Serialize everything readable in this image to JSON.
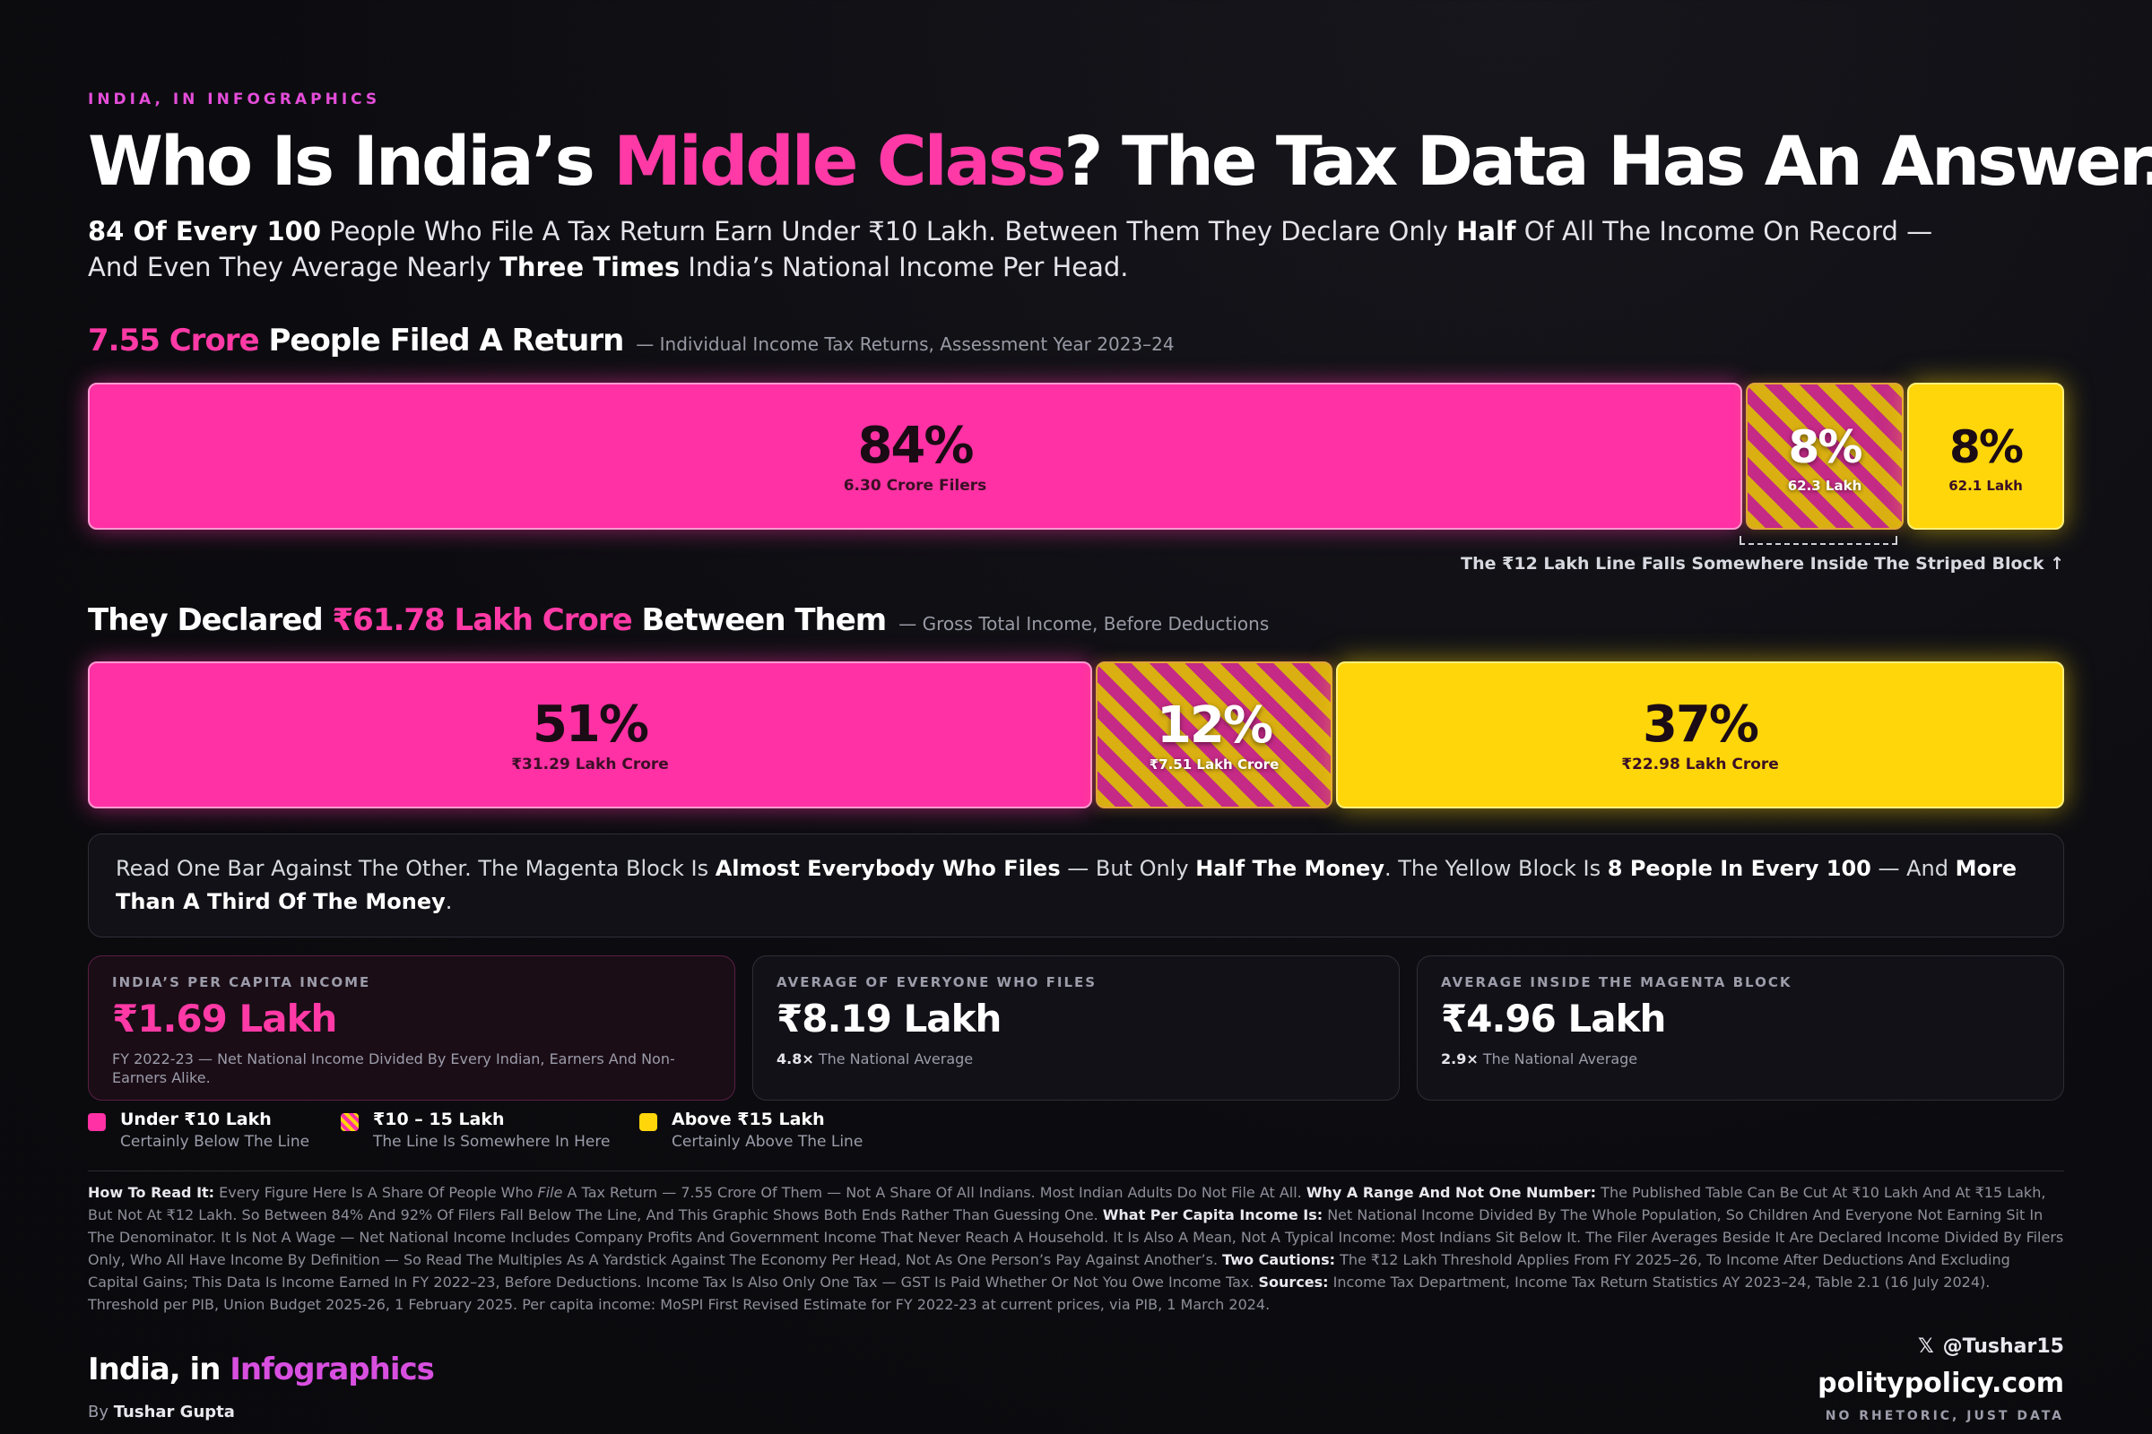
{
  "kicker": "INDIA, IN INFOGRAPHICS",
  "title": {
    "part1": "Who Is India’s ",
    "highlight": "Middle Class",
    "part2": "? The Tax Data Has An Answer."
  },
  "subtitle": {
    "s1b": "84 Of Every 100",
    "s1": " People Who File A Tax Return Earn Under ₹10 Lakh. Between Them They Declare Only ",
    "s2b": "Half",
    "s2": " Of All The Income On Record — And Even They Average Nearly ",
    "s3b": "Three Times",
    "s3": " India’s National Income Per Head."
  },
  "chart_data": [
    {
      "type": "bar",
      "orientation": "horizontal-stacked",
      "title_highlight": "7.55 Crore",
      "title": " People Filed A Return",
      "note": "— Individual Income Tax Returns, Assessment Year 2023–24",
      "categories": [
        "Under ₹10 Lakh",
        "₹10 – 15 Lakh",
        "Above ₹15 Lakh"
      ],
      "values": [
        84,
        8,
        8
      ],
      "value_labels": [
        "84%",
        "8%",
        "8%"
      ],
      "detail_labels": [
        "6.30 Crore Filers",
        "62.3 Lakh",
        "62.1 Lakh"
      ],
      "bracket_note": "The ₹12 Lakh Line Falls Somewhere Inside The Striped Block ↑"
    },
    {
      "type": "bar",
      "orientation": "horizontal-stacked",
      "title_pre": "They Declared ",
      "title_highlight": "₹61.78 Lakh Crore",
      "title": " Between Them",
      "note": "— Gross Total Income, Before Deductions",
      "categories": [
        "Under ₹10 Lakh",
        "₹10 – 15 Lakh",
        "Above ₹15 Lakh"
      ],
      "values": [
        51,
        12,
        37
      ],
      "value_labels": [
        "51%",
        "12%",
        "37%"
      ],
      "detail_labels": [
        "₹31.29 Lakh Crore",
        "₹7.51 Lakh Crore",
        "₹22.98 Lakh Crore"
      ]
    }
  ],
  "colors": {
    "magenta": "#ff31a4",
    "yellow": "#ffd60a"
  },
  "callout": {
    "c1": "Read One Bar Against The Other. The Magenta Block Is ",
    "c1b": "Almost Everybody Who Files",
    "c2": " — But Only ",
    "c2b": "Half The Money",
    "c3": ". The Yellow Block Is ",
    "c3b": "8 People In Every 100",
    "c4": " — And ",
    "c4b": "More Than A Third Of The Money",
    "c5": "."
  },
  "cards": [
    {
      "label": "INDIA’S PER CAPITA INCOME",
      "value": "₹1.69 Lakh",
      "desc": "FY 2022-23 — Net National Income Divided By Every Indian, Earners And Non-Earners Alike."
    },
    {
      "label": "AVERAGE OF EVERYONE WHO FILES",
      "value": "₹8.19 Lakh",
      "mult": "4.8×",
      "desc": " The National Average"
    },
    {
      "label": "AVERAGE INSIDE THE MAGENTA BLOCK",
      "value": "₹4.96 Lakh",
      "mult": "2.9×",
      "desc": " The National Average"
    }
  ],
  "legend": [
    {
      "name": "Under ₹10 Lakh",
      "desc": "Certainly Below The Line"
    },
    {
      "name": "₹10 – 15 Lakh",
      "desc": "The Line Is Somewhere In Here"
    },
    {
      "name": "Above ₹15 Lakh",
      "desc": "Certainly Above The Line"
    }
  ],
  "fine": {
    "h1": "How To Read It:",
    "t1a": " Every Figure Here Is A Share Of People Who ",
    "t1i": "File",
    "t1b": " A Tax Return — 7.55 Crore Of Them — Not A Share Of All Indians. Most Indian Adults Do Not File At All. ",
    "h2": "Why A Range And Not One Number:",
    "t2": " The Published Table Can Be Cut At ₹10 Lakh And At ₹15 Lakh, But Not At ₹12 Lakh. So Between 84% And 92% Of Filers Fall Below The Line, And This Graphic Shows Both Ends Rather Than Guessing One. ",
    "h3": "What Per Capita Income Is:",
    "t3": " Net National Income Divided By The Whole Population, So Children And Everyone Not Earning Sit In The Denominator. It Is Not A Wage — Net National Income Includes Company Profits And Government Income That Never Reach A Household. It Is Also A Mean, Not A Typical Income: Most Indians Sit Below It. The Filer Averages Beside It Are Declared Income Divided By Filers Only, Who All Have Income By Definition — So Read The Multiples As A Yardstick Against The Economy Per Head, Not As One Person’s Pay Against Another’s. ",
    "h4": "Two Cautions:",
    "t4": " The ₹12 Lakh Threshold Applies From FY 2025–26, To Income After Deductions And Excluding Capital Gains; This Data Is Income Earned In FY 2022–23, Before Deductions. Income Tax Is Also Only One Tax — GST Is Paid Whether Or Not You Owe Income Tax. ",
    "h5": "Sources:",
    "t5": " Income Tax Department, Income Tax Return Statistics AY 2023–24, Table 2.1 (16 July 2024). Threshold per PIB, Union Budget 2025-26, 1 February 2025. Per capita income: MoSPI First Revised Estimate for FY 2022-23 at current prices, via PIB, 1 March 2024."
  },
  "footer": {
    "brand1": "India, in ",
    "brand2": "Infographics",
    "by": "By ",
    "author": "Tushar Gupta",
    "handle_icon": "x-logo-icon",
    "handle": "@Tushar15",
    "site": "politypolicy.com",
    "tagline": "NO RHETORIC, JUST DATA"
  }
}
